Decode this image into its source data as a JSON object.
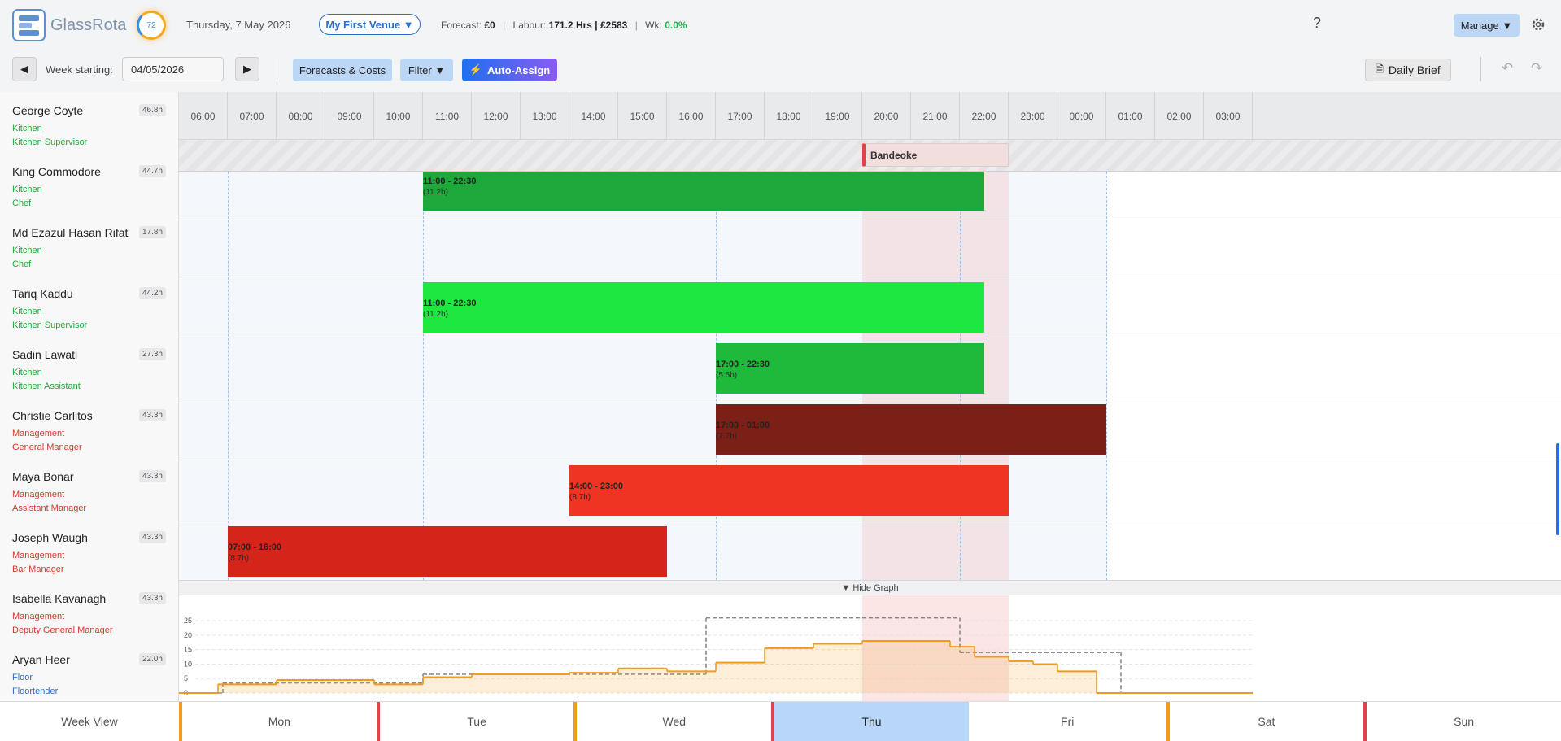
{
  "header": {
    "brand": "GlassRota",
    "score": "72",
    "date": "Thursday, 7 May 2026",
    "venue": "My First Venue ▼",
    "forecast_label": "Forecast:",
    "forecast": "£0",
    "labour_label": "Labour:",
    "labour": "171.2 Hrs | £2583",
    "wk_label": "Wk:",
    "wk": "0.0%",
    "help": "?",
    "manage": "Manage ▼"
  },
  "toolbar": {
    "week_label": "Week starting:",
    "week_value": "04/05/2026",
    "forecasts": "Forecasts & Costs",
    "filter": "Filter ▼",
    "auto_assign": "Auto-Assign",
    "daily_brief": "Daily Brief"
  },
  "hours": [
    "06:00",
    "07:00",
    "08:00",
    "09:00",
    "10:00",
    "11:00",
    "12:00",
    "13:00",
    "14:00",
    "15:00",
    "16:00",
    "17:00",
    "18:00",
    "19:00",
    "20:00",
    "21:00",
    "22:00",
    "23:00",
    "00:00",
    "01:00",
    "02:00",
    "03:00"
  ],
  "event": {
    "name": "Bandeoke"
  },
  "employees": [
    {
      "name": "George Coyte",
      "hours": "46.8h",
      "department": "Kitchen",
      "role": "Kitchen Supervisor",
      "dept_color": "#22a83a",
      "shift": null
    },
    {
      "name": "King Commodore",
      "hours": "44.7h",
      "department": "Kitchen",
      "role": "Chef",
      "dept_color": "#22a83a",
      "shift": {
        "time": "11:00 - 22:30",
        "duration": "(11.2h)",
        "color": "#1fa83a"
      }
    },
    {
      "name": "Md Ezazul Hasan Rifat",
      "hours": "17.8h",
      "department": "Kitchen",
      "role": "Chef",
      "dept_color": "#22a83a",
      "shift": null
    },
    {
      "name": "Tariq Kaddu",
      "hours": "44.2h",
      "department": "Kitchen",
      "role": "Kitchen Supervisor",
      "dept_color": "#22a83a",
      "shift": {
        "time": "11:00 - 22:30",
        "duration": "(11.2h)",
        "color": "#1ee840"
      }
    },
    {
      "name": "Sadin Lawati",
      "hours": "27.3h",
      "department": "Kitchen",
      "role": "Kitchen Assistant",
      "dept_color": "#22a83a",
      "shift": {
        "time": "17:00 - 22:30",
        "duration": "(5.5h)",
        "color": "#1eba3c"
      }
    },
    {
      "name": "Christie Carlitos",
      "hours": "43.3h",
      "department": "Management",
      "role": "General Manager",
      "dept_color": "#d23a2a",
      "shift": {
        "time": "17:00 - 01:00",
        "duration": "(7.7h)",
        "color": "#7c1f17"
      }
    },
    {
      "name": "Maya Bonar",
      "hours": "43.3h",
      "department": "Management",
      "role": "Assistant Manager",
      "dept_color": "#d23a2a",
      "shift": {
        "time": "14:00 - 23:00",
        "duration": "(8.7h)",
        "color": "#f03424"
      }
    },
    {
      "name": "Joseph Waugh",
      "hours": "43.3h",
      "department": "Management",
      "role": "Bar Manager",
      "dept_color": "#d23a2a",
      "shift": {
        "time": "07:00 - 16:00",
        "duration": "(8.7h)",
        "color": "#d5251a"
      }
    },
    {
      "name": "Isabella Kavanagh",
      "hours": "43.3h",
      "department": "Management",
      "role": "Deputy General Manager",
      "dept_color": "#d23a2a",
      "shift": null
    },
    {
      "name": "Aryan Heer",
      "hours": "22.0h",
      "department": "Floor",
      "role": "Floortender",
      "dept_color": "#2a6fd0",
      "shift": null
    }
  ],
  "graph": {
    "toggle": "▼ Hide Graph",
    "type": "line",
    "xlim": [
      6,
      28
    ],
    "ylim": [
      0,
      27
    ],
    "yticks": [
      0,
      5,
      10,
      15,
      20,
      25
    ],
    "grid": true,
    "series": [
      {
        "color": "#888888",
        "style": "dashed",
        "x": [
          6,
          6.9,
          11,
          16.8,
          22,
          25.3
        ],
        "values": [
          0,
          3.5,
          6.5,
          26,
          14,
          0
        ]
      },
      {
        "color": "#f29a1c",
        "style": "area",
        "x": [
          6,
          6.8,
          8,
          10,
          11,
          12,
          14,
          15,
          16,
          17,
          18,
          19,
          20,
          21.8,
          22.3,
          23,
          23.5,
          24,
          24.8
        ],
        "values": [
          0,
          3,
          4.5,
          3,
          5.5,
          6.5,
          7,
          8.5,
          7.5,
          10.5,
          15.5,
          17,
          18,
          16,
          12.5,
          11,
          10,
          7.5,
          0
        ]
      }
    ]
  },
  "nav": [
    {
      "label": "Week View"
    },
    {
      "label": "Mon",
      "color": "#f29a1c"
    },
    {
      "label": "Tue",
      "color": "#e0434a"
    },
    {
      "label": "Wed",
      "color": "#f29a1c"
    },
    {
      "label": "Thu",
      "color": "#e0434a",
      "active": true
    },
    {
      "label": "Fri"
    },
    {
      "label": "Sat",
      "color": "#f29a1c"
    },
    {
      "label": "Sun",
      "color": "#e0434a"
    }
  ]
}
